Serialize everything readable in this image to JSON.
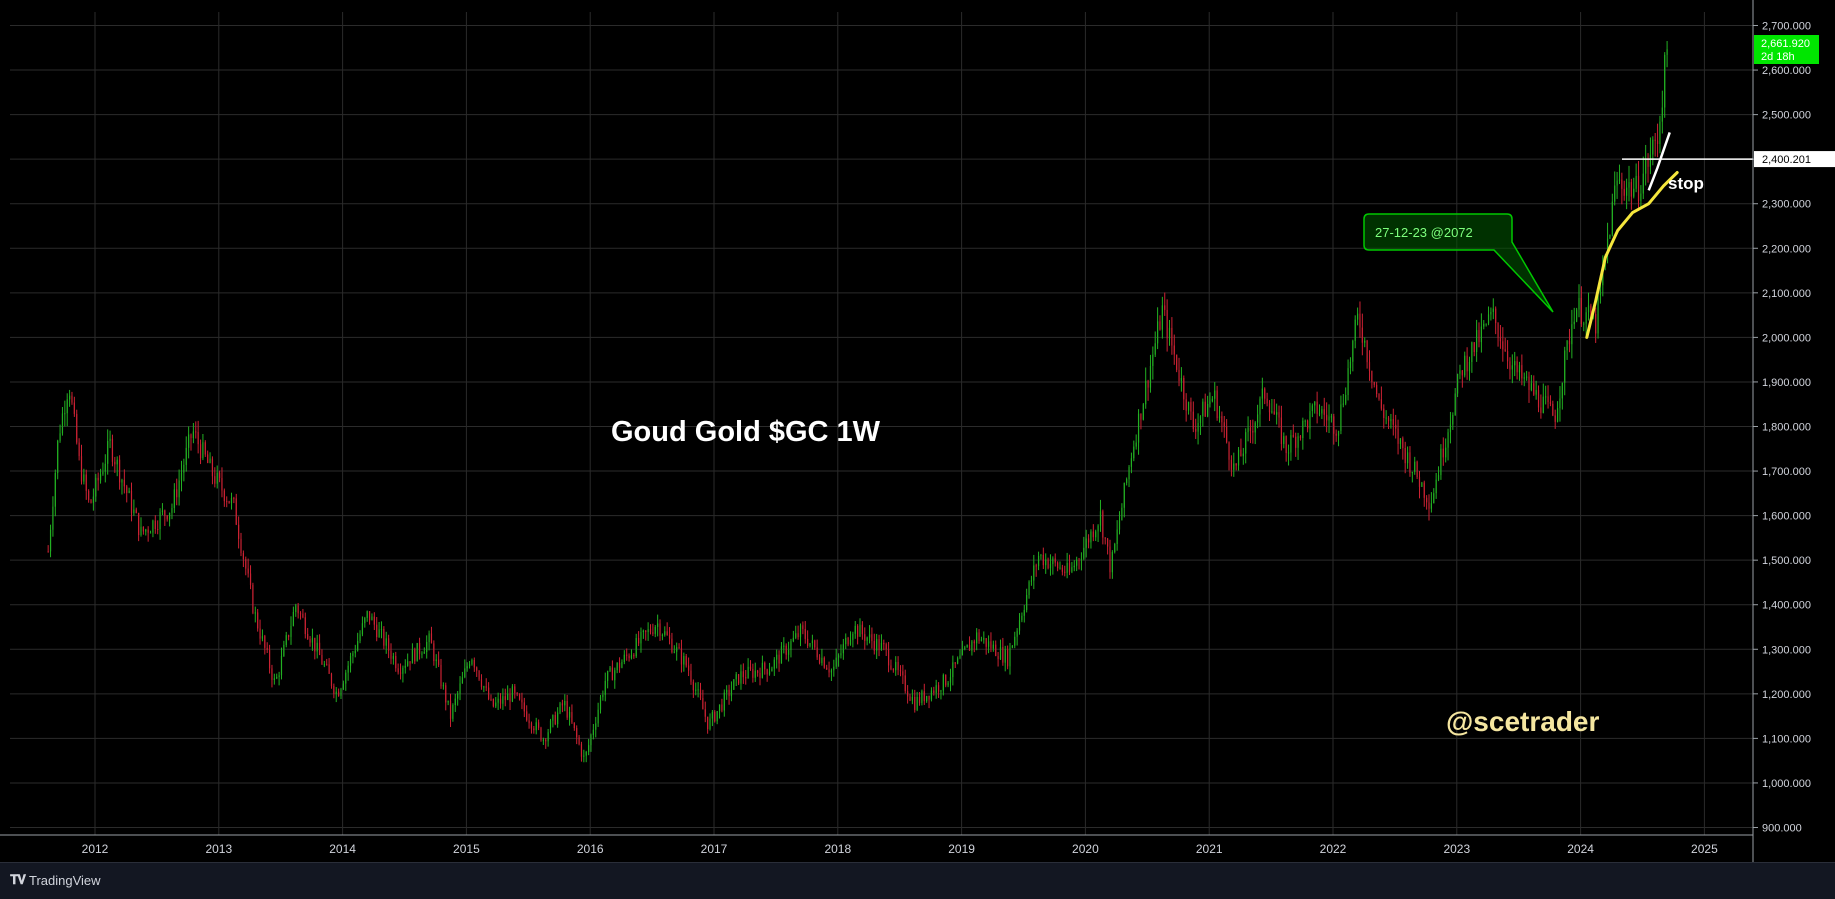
{
  "chart_data": {
    "type": "candlestick",
    "title": "Goud Gold $GC 1W",
    "watermark": "@scetrader",
    "price_axis": {
      "labels": [
        "2,700.000",
        "2,600.000",
        "2,500.000",
        "2,400.000",
        "2,300.000",
        "2,200.000",
        "2,100.000",
        "2,000.000",
        "1,900.000",
        "1,800.000",
        "1,700.000",
        "1,600.000",
        "1,500.000",
        "1,400.000",
        "1,300.000",
        "1,200.000",
        "1,100.000",
        "1,000.000",
        "900.000"
      ],
      "min": 900,
      "max": 2700
    },
    "time_axis": {
      "labels": [
        "2012",
        "2013",
        "2014",
        "2015",
        "2016",
        "2017",
        "2018",
        "2019",
        "2020",
        "2021",
        "2022",
        "2023",
        "2024",
        "2025"
      ]
    },
    "last_price": {
      "value": "2,661.920",
      "countdown": "2d 18h",
      "color": "#00e600"
    },
    "horizontal_line": {
      "price": 2400.201,
      "label": "2,400.201",
      "color": "#ffffff"
    },
    "callout": {
      "text": "27-12-23 @2072",
      "color": "#00c800",
      "date": "2023-12-27",
      "price": 2072
    },
    "stop_label": "stop",
    "trend_curve_color": "#f5e63c",
    "up_color": "#22b022",
    "down_color": "#cc2233",
    "price_path": [
      [
        "2011-08",
        1520
      ],
      [
        "2011-09",
        1780
      ],
      [
        "2011-10",
        1900
      ],
      [
        "2011-11",
        1720
      ],
      [
        "2011-12",
        1620
      ],
      [
        "2012-02",
        1760
      ],
      [
        "2012-05",
        1560
      ],
      [
        "2012-08",
        1620
      ],
      [
        "2012-10",
        1790
      ],
      [
        "2012-12",
        1690
      ],
      [
        "2013-02",
        1620
      ],
      [
        "2013-04",
        1380
      ],
      [
        "2013-06",
        1220
      ],
      [
        "2013-08",
        1400
      ],
      [
        "2013-12",
        1200
      ],
      [
        "2014-03",
        1380
      ],
      [
        "2014-06",
        1260
      ],
      [
        "2014-09",
        1320
      ],
      [
        "2014-11",
        1150
      ],
      [
        "2015-01",
        1290
      ],
      [
        "2015-03",
        1170
      ],
      [
        "2015-05",
        1200
      ],
      [
        "2015-08",
        1100
      ],
      [
        "2015-10",
        1180
      ],
      [
        "2015-12",
        1050
      ],
      [
        "2016-02",
        1230
      ],
      [
        "2016-07",
        1360
      ],
      [
        "2016-10",
        1260
      ],
      [
        "2016-12",
        1130
      ],
      [
        "2017-03",
        1240
      ],
      [
        "2017-06",
        1260
      ],
      [
        "2017-09",
        1340
      ],
      [
        "2017-12",
        1250
      ],
      [
        "2018-02",
        1350
      ],
      [
        "2018-05",
        1300
      ],
      [
        "2018-08",
        1180
      ],
      [
        "2018-11",
        1230
      ],
      [
        "2019-02",
        1330
      ],
      [
        "2019-05",
        1280
      ],
      [
        "2019-08",
        1510
      ],
      [
        "2019-11",
        1470
      ],
      [
        "2020-02",
        1600
      ],
      [
        "2020-03",
        1480
      ],
      [
        "2020-05",
        1740
      ],
      [
        "2020-08",
        2060
      ],
      [
        "2020-11",
        1800
      ],
      [
        "2021-01",
        1870
      ],
      [
        "2021-03",
        1700
      ],
      [
        "2021-06",
        1880
      ],
      [
        "2021-08",
        1750
      ],
      [
        "2021-11",
        1840
      ],
      [
        "2022-01",
        1800
      ],
      [
        "2022-03",
        2050
      ],
      [
        "2022-05",
        1850
      ],
      [
        "2022-08",
        1720
      ],
      [
        "2022-10",
        1630
      ],
      [
        "2023-01",
        1930
      ],
      [
        "2023-04",
        2050
      ],
      [
        "2023-06",
        1930
      ],
      [
        "2023-10",
        1820
      ],
      [
        "2023-12",
        2072
      ],
      [
        "2024-02",
        2030
      ],
      [
        "2024-04",
        2350
      ],
      [
        "2024-06",
        2330
      ],
      [
        "2024-08",
        2450
      ],
      [
        "2024-09",
        2661.92
      ]
    ],
    "grid": true
  },
  "branding": {
    "label": "TradingView"
  },
  "icons": {
    "logo": "tradingview-logo-icon"
  }
}
